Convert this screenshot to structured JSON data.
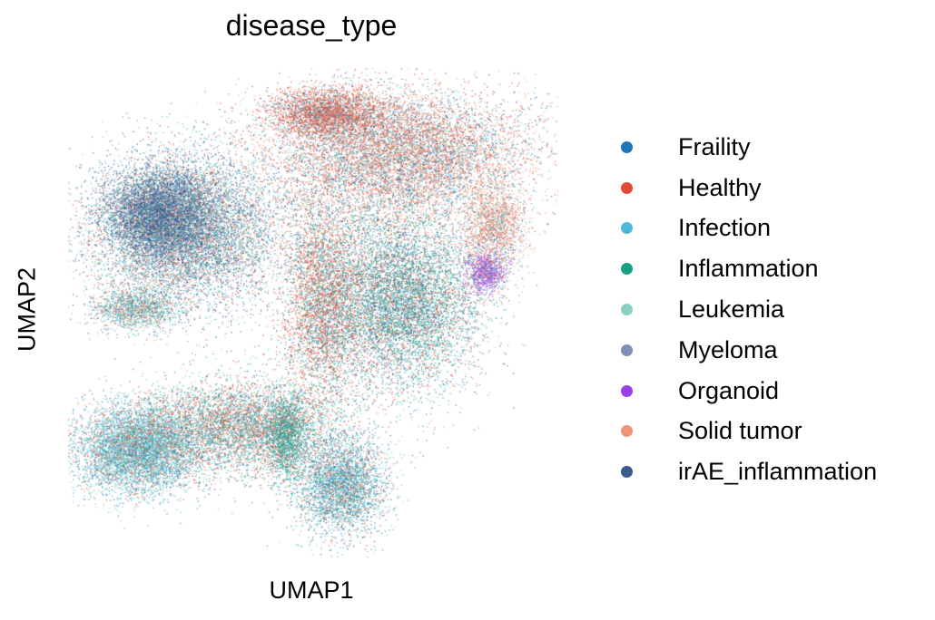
{
  "chart_data": {
    "type": "scatter",
    "title": "disease_type",
    "xlabel": "UMAP1",
    "ylabel": "UMAP2",
    "grid": false,
    "axes_visible": false,
    "legend_position": "right",
    "series": [
      {
        "name": "Fraility",
        "color": "#1f77b4"
      },
      {
        "name": "Healthy",
        "color": "#e34a33"
      },
      {
        "name": "Infection",
        "color": "#4bbbd9"
      },
      {
        "name": "Inflammation",
        "color": "#1a9e84"
      },
      {
        "name": "Leukemia",
        "color": "#8ed0c0"
      },
      {
        "name": "Myeloma",
        "color": "#7f8fb5"
      },
      {
        "name": "Organoid",
        "color": "#9b3fe8"
      },
      {
        "name": "Solid tumor",
        "color": "#f0947a"
      },
      {
        "name": "irAE_inflammation",
        "color": "#3b5a8e"
      }
    ]
  }
}
